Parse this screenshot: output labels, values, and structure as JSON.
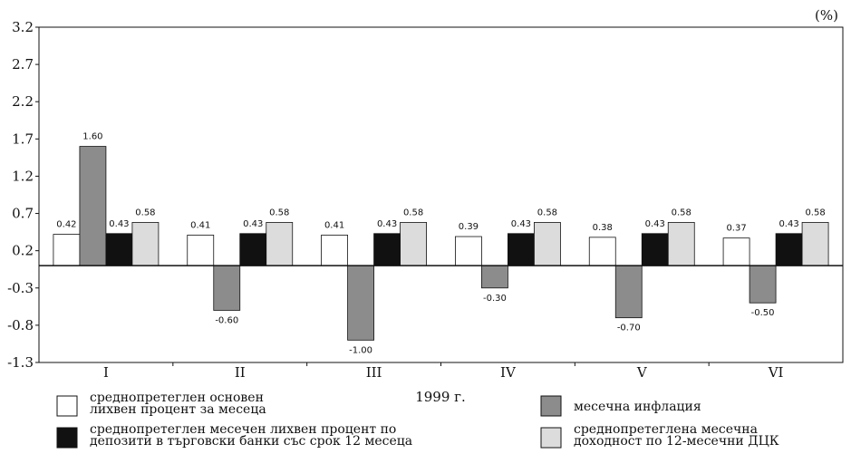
{
  "chart_data": {
    "type": "bar",
    "unit_label": "(%)",
    "xlabel": "1999 г.",
    "ylabel": "",
    "ylim": [
      -1.3,
      3.2
    ],
    "yticks": [
      "3.2",
      "2.7",
      "2.2",
      "1.7",
      "1.2",
      "0.7",
      "0.2",
      "-0.3",
      "-0.8",
      "-1.3"
    ],
    "ytick_values": [
      3.2,
      2.7,
      2.2,
      1.7,
      1.2,
      0.7,
      0.2,
      -0.3,
      -0.8,
      -1.3
    ],
    "categories": [
      "I",
      "II",
      "III",
      "IV",
      "V",
      "VI"
    ],
    "series": [
      {
        "name": "среднопретеглен основен лихвен процент за месеца",
        "legend_lines": [
          "среднопретеглен основен",
          "лихвен процент за месеца"
        ],
        "color": "#ffffff",
        "values": [
          0.42,
          0.41,
          0.41,
          0.39,
          0.38,
          0.37
        ],
        "labels": [
          "0.42",
          "0.41",
          "0.41",
          "0.39",
          "0.38",
          "0.37"
        ]
      },
      {
        "name": "месечна инфлация",
        "legend_lines": [
          "месечна инфлация"
        ],
        "color": "#8c8c8c",
        "values": [
          1.6,
          -0.6,
          -1.0,
          -0.3,
          -0.7,
          -0.5
        ],
        "labels": [
          "1.60",
          "-0.60",
          "-1.00",
          "-0.30",
          "-0.70",
          "-0.50"
        ]
      },
      {
        "name": "среднопретеглен месечен лихвен процент по депозити в търговски банки със срок 12 месеца",
        "legend_lines": [
          "среднопретеглен месечен лихвен процент по",
          "депозити в търговски банки със срок 12 месеца"
        ],
        "color": "#111111",
        "values": [
          0.43,
          0.43,
          0.43,
          0.43,
          0.43,
          0.43
        ],
        "labels": [
          "0.43",
          "0.43",
          "0.43",
          "0.43",
          "0.43",
          "0.43"
        ]
      },
      {
        "name": "среднопретеглена месечна доходност по 12-месечни ДЦК",
        "legend_lines": [
          "среднопретеглена месечна",
          "доходност по 12-месечни ДЦК"
        ],
        "color": "#dcdcdc",
        "values": [
          0.58,
          0.58,
          0.58,
          0.58,
          0.58,
          0.58
        ],
        "labels": [
          "0.58",
          "0.58",
          "0.58",
          "0.58",
          "0.58",
          "0.58"
        ]
      }
    ],
    "grid": false,
    "legend_position": "bottom"
  }
}
